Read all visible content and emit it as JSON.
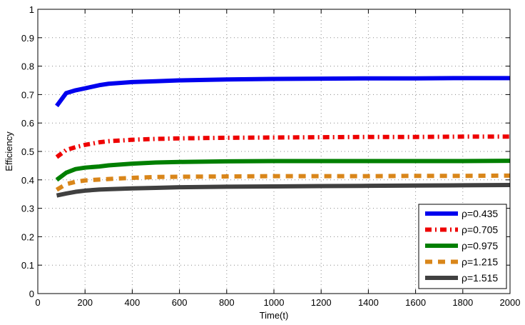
{
  "chart_data": {
    "type": "line",
    "title": "",
    "xlabel": "Time(t)",
    "ylabel": "Efficiency",
    "xlim": [
      0,
      2000
    ],
    "ylim": [
      0,
      1
    ],
    "xticks": [
      0,
      200,
      400,
      600,
      800,
      1000,
      1200,
      1400,
      1600,
      1800,
      2000
    ],
    "yticks": [
      0,
      0.1,
      0.2,
      0.3,
      0.4,
      0.5,
      0.6,
      0.7,
      0.8,
      0.9,
      1
    ],
    "grid": true,
    "legend_position": "lower right",
    "x": [
      80,
      120,
      160,
      200,
      260,
      300,
      400,
      500,
      600,
      800,
      1000,
      1200,
      1400,
      1600,
      1800,
      2000
    ],
    "series": [
      {
        "name": "ρ=0.435",
        "color": "#0000ee",
        "style": "solid",
        "values": [
          0.66,
          0.705,
          0.715,
          0.722,
          0.733,
          0.738,
          0.744,
          0.747,
          0.75,
          0.753,
          0.755,
          0.756,
          0.757,
          0.757,
          0.758,
          0.758
        ]
      },
      {
        "name": "ρ=0.705",
        "color": "#ee0000",
        "style": "dashdot",
        "values": [
          0.48,
          0.505,
          0.515,
          0.523,
          0.532,
          0.536,
          0.541,
          0.544,
          0.546,
          0.548,
          0.549,
          0.55,
          0.551,
          0.551,
          0.552,
          0.552
        ]
      },
      {
        "name": "ρ=0.975",
        "color": "#007f00",
        "style": "solid",
        "values": [
          0.4,
          0.425,
          0.438,
          0.443,
          0.447,
          0.451,
          0.457,
          0.461,
          0.463,
          0.465,
          0.466,
          0.466,
          0.466,
          0.466,
          0.466,
          0.467
        ]
      },
      {
        "name": "ρ=1.215",
        "color": "#d9861a",
        "style": "dashed",
        "values": [
          0.365,
          0.385,
          0.393,
          0.398,
          0.401,
          0.403,
          0.407,
          0.41,
          0.411,
          0.412,
          0.413,
          0.413,
          0.413,
          0.414,
          0.414,
          0.415
        ]
      },
      {
        "name": "ρ=1.515",
        "color": "#404040",
        "style": "solid",
        "values": [
          0.345,
          0.352,
          0.358,
          0.362,
          0.366,
          0.367,
          0.37,
          0.372,
          0.374,
          0.376,
          0.377,
          0.378,
          0.379,
          0.38,
          0.381,
          0.382
        ]
      }
    ]
  }
}
